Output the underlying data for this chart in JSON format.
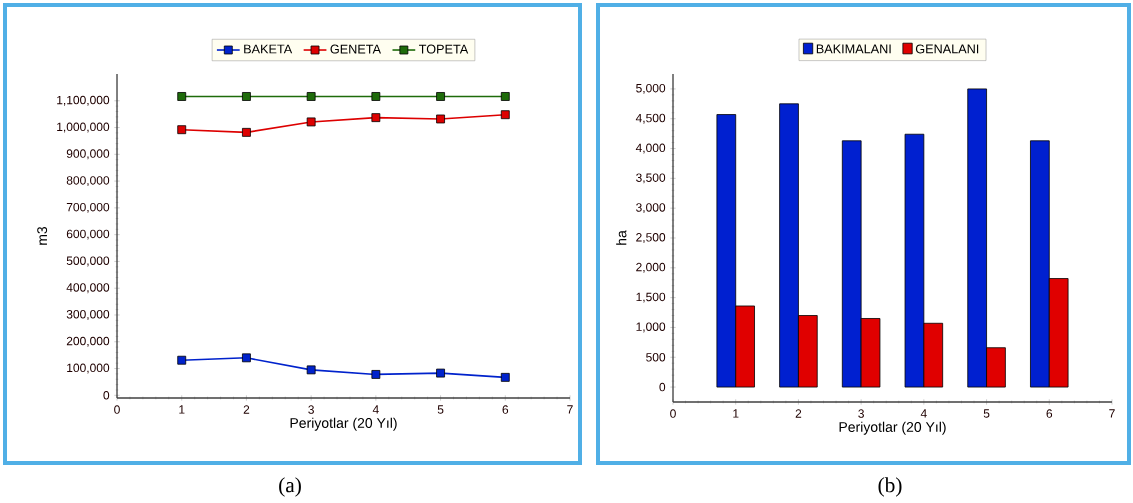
{
  "chart_data": [
    {
      "type": "line",
      "xlabel": "Periyotlar (20 Yıl)",
      "ylabel": "m3",
      "x": [
        1,
        2,
        3,
        4,
        5,
        6
      ],
      "series": [
        {
          "name": "BAKETA",
          "color": "#0022cc",
          "values": [
            131000,
            140000,
            95000,
            78000,
            83000,
            67000
          ]
        },
        {
          "name": "GENETA",
          "color": "#dd0000",
          "values": [
            992000,
            982000,
            1021000,
            1037000,
            1032000,
            1048000
          ]
        },
        {
          "name": "TOPETA",
          "color": "#1e6b0a",
          "values": [
            1116000,
            1116000,
            1116000,
            1116000,
            1116000,
            1116000
          ]
        }
      ],
      "xlim": [
        0,
        7
      ],
      "xticks": [
        0,
        1,
        2,
        3,
        4,
        5,
        6,
        7
      ],
      "ylim": [
        -10000,
        1200000
      ],
      "yticks": [
        {
          "value": 0,
          "label": "0"
        },
        {
          "value": 100000,
          "label": "100,000"
        },
        {
          "value": 200000,
          "label": "200,000"
        },
        {
          "value": 300000,
          "label": "300,000"
        },
        {
          "value": 400000,
          "label": "400,000"
        },
        {
          "value": 500000,
          "label": "500,000"
        },
        {
          "value": 600000,
          "label": "600,000"
        },
        {
          "value": 700000,
          "label": "700,000"
        },
        {
          "value": 800000,
          "label": "800,000"
        },
        {
          "value": 900000,
          "label": "900,000"
        },
        {
          "value": 1000000,
          "label": "1,000,000"
        },
        {
          "value": 1100000,
          "label": "1,100,000"
        }
      ],
      "legend": "top",
      "marker": "square",
      "grid": false,
      "annotations": [
        "(a)"
      ]
    },
    {
      "type": "bar",
      "xlabel": "Periyotlar (20 Yıl)",
      "ylabel": "ha",
      "x": [
        1,
        2,
        3,
        4,
        5,
        6
      ],
      "series": [
        {
          "name": "BAKIMALANI",
          "color": "#0020d0",
          "values": [
            4570,
            4750,
            4130,
            4240,
            5000,
            4130
          ]
        },
        {
          "name": "GENALANI",
          "color": "#e00000",
          "values": [
            1360,
            1200,
            1150,
            1070,
            660,
            1820
          ]
        }
      ],
      "xlim": [
        0,
        7
      ],
      "xticks": [
        0,
        1,
        2,
        3,
        4,
        5,
        6,
        7
      ],
      "ylim": [
        -250,
        5250
      ],
      "yticks": [
        {
          "value": 0,
          "label": "0"
        },
        {
          "value": 500,
          "label": "500"
        },
        {
          "value": 1000,
          "label": "1,000"
        },
        {
          "value": 1500,
          "label": "1,500"
        },
        {
          "value": 2000,
          "label": "2,000"
        },
        {
          "value": 2500,
          "label": "2,500"
        },
        {
          "value": 3000,
          "label": "3,000"
        },
        {
          "value": 3500,
          "label": "3,500"
        },
        {
          "value": 4000,
          "label": "4,000"
        },
        {
          "value": 4500,
          "label": "4,500"
        },
        {
          "value": 5000,
          "label": "5,000"
        }
      ],
      "legend": "top",
      "grid": false,
      "annotations": [
        "(b)"
      ]
    }
  ]
}
